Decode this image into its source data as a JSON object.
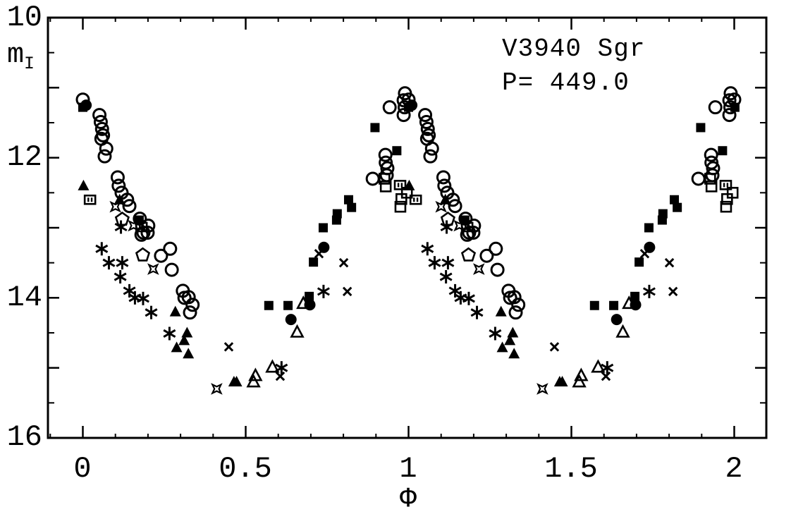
{
  "colors": {
    "ink": "#000000",
    "background": "#ffffff"
  },
  "figure": {
    "title_line1": "V3940 Sgr",
    "title_line2": "P= 449.0",
    "xlabel": "Φ",
    "ylabel_main": "m",
    "ylabel_sub": "I"
  },
  "axis_labels": {
    "y": [
      "10",
      "12",
      "14",
      "16"
    ],
    "x": [
      "0",
      "0.5",
      "1",
      "1.5",
      "2"
    ]
  },
  "chart_data": {
    "type": "scatter",
    "title": "V3940 Sgr",
    "subtitle": "P= 449.0",
    "xlabel": "Φ",
    "ylabel": "m_I",
    "xlim": [
      -0.106,
      2.106
    ],
    "ylim": [
      16,
      10
    ],
    "x_major_ticks": [
      0,
      0.5,
      1,
      1.5,
      2
    ],
    "x_minor_step": 0.1,
    "y_major_ticks": [
      10,
      11,
      12,
      13,
      14,
      15,
      16
    ],
    "y_minor_step": 0.5,
    "y_labeled_ticks": [
      10,
      12,
      14,
      16
    ],
    "grid": false,
    "legend": "none",
    "phase_duplicated": true,
    "axis_note": "magnitude axis inverted; data for phase 0-1 repeated at phase+1",
    "series": [
      {
        "name": "open-circle",
        "marker": "circle-open",
        "points": [
          [
            0.0,
            11.17
          ],
          [
            2.0,
            11.17
          ],
          [
            0.051,
            11.39
          ],
          [
            0.055,
            11.49
          ],
          [
            0.059,
            11.59
          ],
          [
            0.062,
            11.68
          ],
          [
            0.057,
            11.73
          ],
          [
            0.072,
            11.87
          ],
          [
            0.067,
            11.98
          ],
          [
            0.107,
            12.28
          ],
          [
            0.11,
            12.4
          ],
          [
            0.119,
            12.5
          ],
          [
            0.136,
            12.6
          ],
          [
            0.143,
            12.69
          ],
          [
            0.175,
            12.87
          ],
          [
            0.201,
            12.97
          ],
          [
            0.186,
            13.07
          ],
          [
            0.199,
            13.07
          ],
          [
            0.18,
            13.1
          ],
          [
            0.24,
            13.4
          ],
          [
            0.268,
            13.3
          ],
          [
            0.273,
            13.6
          ],
          [
            0.307,
            13.9
          ],
          [
            0.312,
            14.0
          ],
          [
            0.325,
            13.99
          ],
          [
            0.337,
            14.1
          ],
          [
            0.329,
            14.21
          ],
          [
            0.89,
            12.3
          ],
          [
            0.929,
            11.96
          ],
          [
            0.93,
            12.07
          ],
          [
            0.935,
            12.15
          ],
          [
            0.933,
            12.25
          ],
          [
            0.942,
            11.28
          ],
          [
            0.985,
            11.18
          ],
          [
            0.988,
            11.28
          ],
          [
            0.985,
            11.39
          ],
          [
            0.989,
            11.08
          ]
        ]
      },
      {
        "name": "filled-circle",
        "marker": "circle-filled",
        "points": [
          [
            0.01,
            11.25
          ],
          [
            0.639,
            14.31
          ],
          [
            0.697,
            14.1
          ],
          [
            0.74,
            13.28
          ]
        ]
      },
      {
        "name": "filled-square",
        "marker": "square-filled",
        "points": [
          [
            0.0,
            11.28
          ],
          [
            2.002,
            11.28
          ],
          [
            0.173,
            12.89
          ],
          [
            0.571,
            14.11
          ],
          [
            0.63,
            14.11
          ],
          [
            0.695,
            13.98
          ],
          [
            0.708,
            13.49
          ],
          [
            0.738,
            13.0
          ],
          [
            0.779,
            12.89
          ],
          [
            0.781,
            12.8
          ],
          [
            0.816,
            12.6
          ],
          [
            0.825,
            12.71
          ],
          [
            0.897,
            11.57
          ],
          [
            0.964,
            11.9
          ]
        ]
      },
      {
        "name": "open-square",
        "marker": "square-open",
        "points": [
          [
            0.926,
            12.3
          ],
          [
            0.93,
            12.41
          ],
          [
            0.975,
            12.7
          ],
          [
            0.978,
            12.59
          ],
          [
            0.995,
            12.5
          ]
        ]
      },
      {
        "name": "barred-square",
        "marker": "square-dotted",
        "points": [
          [
            0.022,
            12.6
          ],
          [
            0.18,
            12.99
          ],
          [
            0.974,
            12.39
          ]
        ]
      },
      {
        "name": "filled-triangle",
        "marker": "triangle-filled",
        "points": [
          [
            0.002,
            12.4
          ],
          [
            0.113,
            12.6
          ],
          [
            0.284,
            14.2
          ],
          [
            0.288,
            14.71
          ],
          [
            0.311,
            14.61
          ],
          [
            0.32,
            14.5
          ],
          [
            0.324,
            14.8
          ],
          [
            0.464,
            15.2
          ],
          [
            0.472,
            15.2
          ]
        ]
      },
      {
        "name": "open-triangle",
        "marker": "triangle-open",
        "points": [
          [
            0.524,
            15.2
          ],
          [
            0.53,
            15.11
          ],
          [
            0.582,
            14.99
          ],
          [
            0.658,
            14.49
          ],
          [
            0.677,
            14.08
          ]
        ]
      },
      {
        "name": "open-pentagon",
        "marker": "pentagon-open",
        "points": [
          [
            0.121,
            12.88
          ],
          [
            0.184,
            13.39
          ]
        ]
      },
      {
        "name": "asterisk",
        "marker": "asterisk",
        "points": [
          [
            0.058,
            13.3
          ],
          [
            0.08,
            13.5
          ],
          [
            0.121,
            13.5
          ],
          [
            0.115,
            13.7
          ],
          [
            0.117,
            12.99
          ],
          [
            0.143,
            13.9
          ],
          [
            0.16,
            14.0
          ],
          [
            0.185,
            14.01
          ],
          [
            0.21,
            14.21
          ],
          [
            0.266,
            14.51
          ],
          [
            0.61,
            15.0
          ],
          [
            0.739,
            13.91
          ]
        ]
      },
      {
        "name": "cross",
        "marker": "cross-x",
        "points": [
          [
            0.448,
            14.7
          ],
          [
            0.606,
            15.12
          ],
          [
            0.725,
            13.37
          ],
          [
            0.801,
            13.5
          ],
          [
            0.812,
            13.91
          ]
        ]
      },
      {
        "name": "four-point-star",
        "marker": "star4-open",
        "points": [
          [
            0.1,
            12.7
          ],
          [
            0.156,
            12.97
          ],
          [
            0.216,
            13.59
          ],
          [
            0.411,
            15.3
          ]
        ]
      }
    ]
  }
}
